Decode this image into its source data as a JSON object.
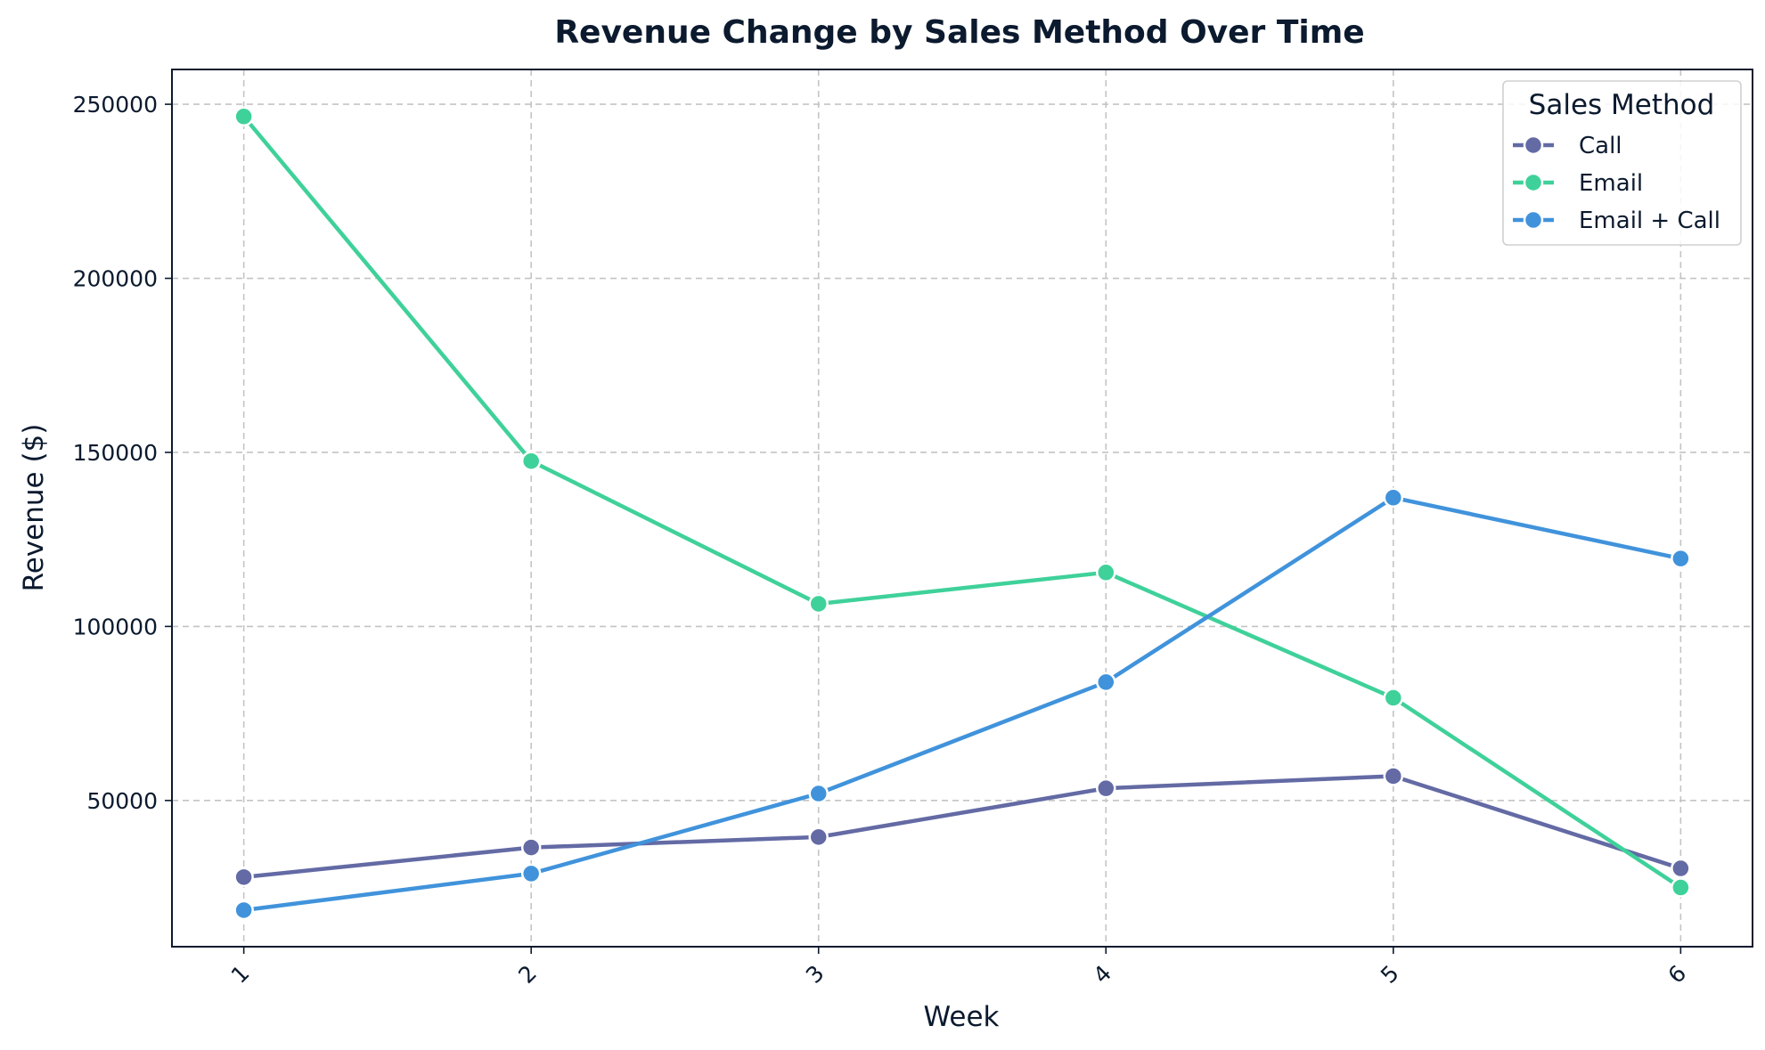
{
  "chart_data": {
    "type": "line",
    "title": "Revenue Change by Sales Method Over Time",
    "xlabel": "Week",
    "ylabel": "Revenue ($)",
    "x": [
      1,
      2,
      3,
      4,
      5,
      6
    ],
    "x_tick_labels": [
      "1",
      "2",
      "3",
      "4",
      "5",
      "6"
    ],
    "y_ticks": [
      50000,
      100000,
      150000,
      200000,
      250000
    ],
    "y_tick_labels": [
      "50000",
      "100000",
      "150000",
      "200000",
      "250000"
    ],
    "xlim": [
      0.75,
      6.25
    ],
    "ylim": [
      8000,
      260000
    ],
    "grid": true,
    "legend_title": "Sales Method",
    "legend_position": "top-right",
    "series": [
      {
        "name": "Call",
        "color": "#636aa4",
        "values": [
          28000,
          36500,
          39500,
          53500,
          57000,
          30500
        ]
      },
      {
        "name": "Email",
        "color": "#3fd19a",
        "values": [
          246500,
          147500,
          106500,
          115500,
          79500,
          25000
        ]
      },
      {
        "name": "Email + Call",
        "color": "#4093db",
        "values": [
          18500,
          29000,
          52000,
          84000,
          137000,
          119500
        ]
      }
    ]
  }
}
